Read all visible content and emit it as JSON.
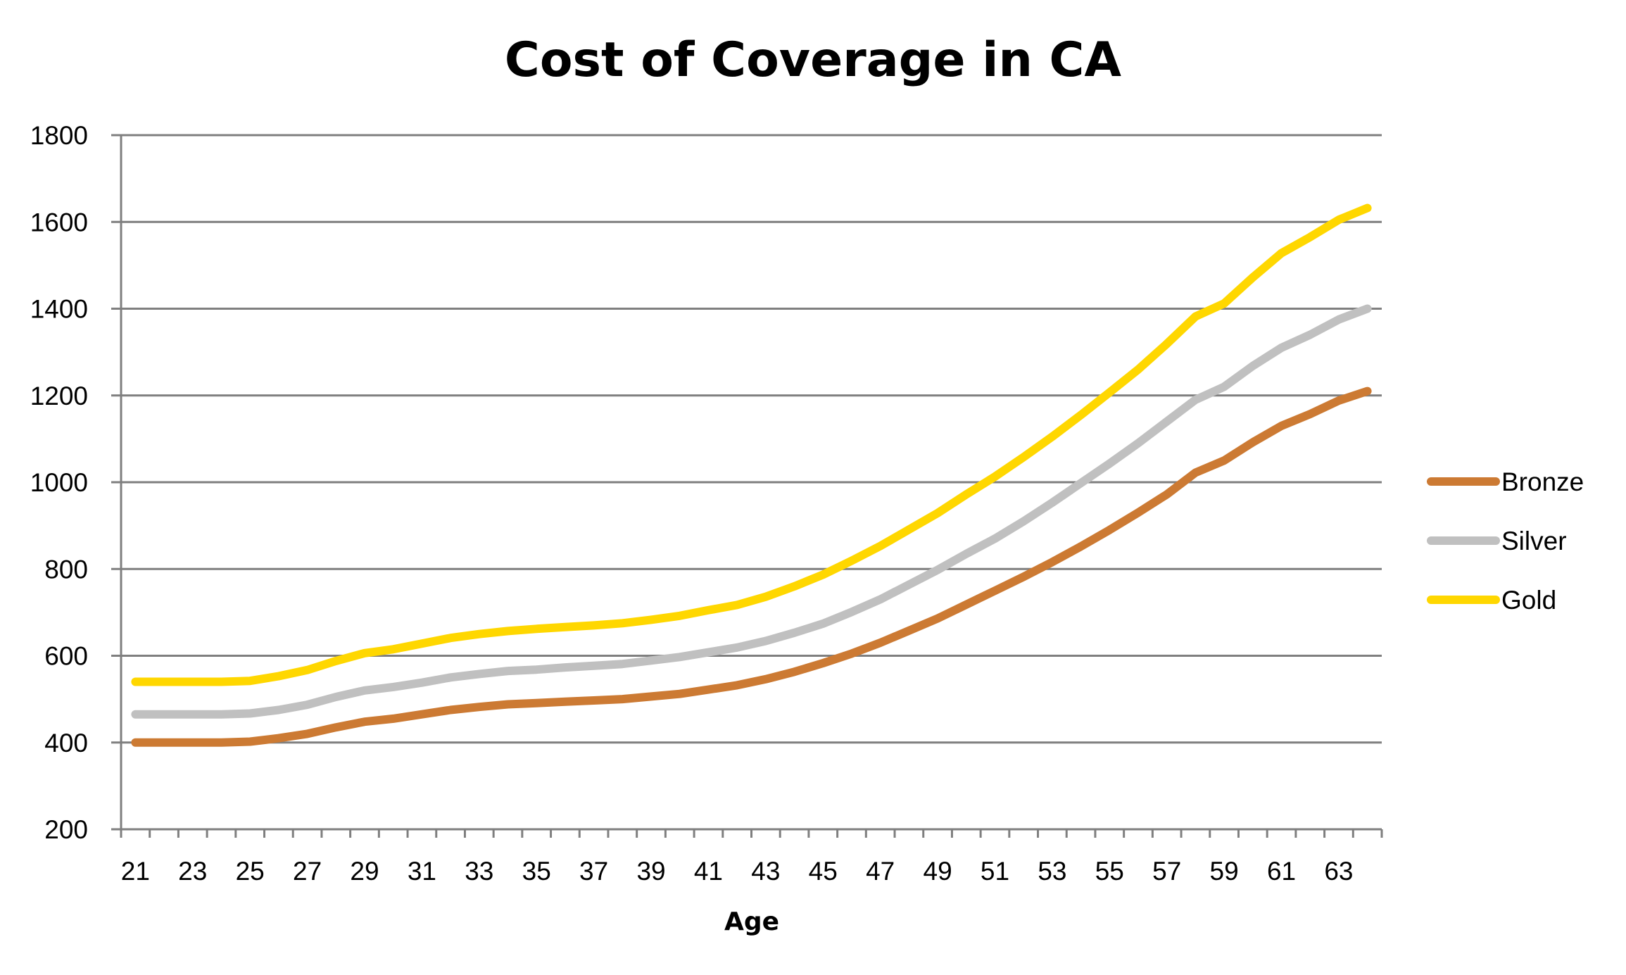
{
  "chart_data": {
    "type": "line",
    "title": "Cost of Coverage in CA",
    "xlabel": "Age",
    "ylabel": "",
    "ylim": [
      200,
      1800
    ],
    "yticks": [
      200,
      400,
      600,
      800,
      1000,
      1200,
      1400,
      1600,
      1800
    ],
    "xticks_labeled": [
      21,
      23,
      25,
      27,
      29,
      31,
      33,
      35,
      37,
      39,
      41,
      43,
      45,
      47,
      49,
      51,
      53,
      55,
      57,
      59,
      61,
      63
    ],
    "x": [
      21,
      22,
      23,
      24,
      25,
      26,
      27,
      28,
      29,
      30,
      31,
      32,
      33,
      34,
      35,
      36,
      37,
      38,
      39,
      40,
      41,
      42,
      43,
      44,
      45,
      46,
      47,
      48,
      49,
      50,
      51,
      52,
      53,
      54,
      55,
      56,
      57,
      58,
      59,
      60,
      61,
      62,
      63,
      64
    ],
    "grid": "horizontal",
    "legend_position": "right",
    "series": [
      {
        "name": "Bronze",
        "color": "#CC7A33",
        "values": [
          400,
          400,
          400,
          400,
          402,
          410,
          420,
          435,
          448,
          455,
          465,
          475,
          482,
          488,
          491,
          494,
          497,
          500,
          506,
          512,
          522,
          532,
          546,
          563,
          583,
          605,
          630,
          658,
          686,
          718,
          750,
          782,
          816,
          852,
          890,
          930,
          972,
          1022,
          1050,
          1092,
          1130,
          1157,
          1188,
          1210
        ]
      },
      {
        "name": "Silver",
        "color": "#C0C0C0",
        "values": [
          465,
          465,
          465,
          465,
          467,
          475,
          487,
          505,
          520,
          528,
          538,
          550,
          558,
          565,
          568,
          573,
          577,
          581,
          589,
          597,
          608,
          619,
          634,
          653,
          674,
          701,
          730,
          764,
          798,
          835,
          870,
          910,
          953,
          998,
          1043,
          1090,
          1140,
          1190,
          1220,
          1268,
          1310,
          1340,
          1375,
          1400
        ]
      },
      {
        "name": "Gold",
        "color": "#FFD700",
        "values": [
          540,
          540,
          540,
          540,
          542,
          553,
          567,
          588,
          606,
          615,
          628,
          641,
          650,
          657,
          662,
          666,
          670,
          675,
          683,
          692,
          705,
          717,
          736,
          760,
          787,
          819,
          853,
          891,
          929,
          972,
          1013,
          1058,
          1105,
          1155,
          1207,
          1260,
          1319,
          1382,
          1412,
          1472,
          1528,
          1565,
          1605,
          1632
        ]
      }
    ]
  }
}
